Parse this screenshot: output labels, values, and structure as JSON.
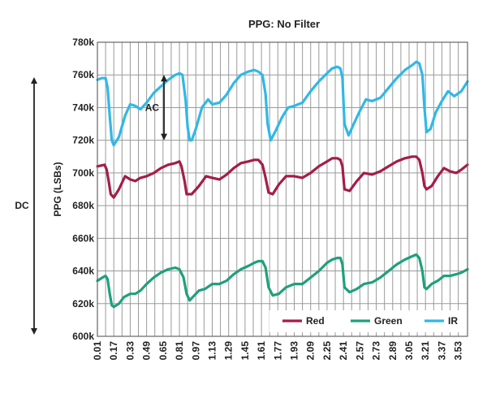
{
  "chart_data": {
    "type": "line",
    "title": "PPG: No Filter",
    "ylabel": "PPG (LSBs)",
    "xlabel": "",
    "ylim": [
      600000,
      780000
    ],
    "xlim": [
      0.01,
      3.62
    ],
    "y_ticks": [
      600000,
      620000,
      640000,
      660000,
      680000,
      700000,
      720000,
      740000,
      760000,
      780000
    ],
    "y_tick_labels": [
      "600k",
      "620k",
      "640k",
      "660k",
      "680k",
      "700k",
      "720k",
      "740k",
      "760k",
      "780k"
    ],
    "x_ticks": [
      "0.01",
      "0.17",
      "0.33",
      "0.49",
      "0.65",
      "0.81",
      "0.97",
      "1.13",
      "1.29",
      "1.45",
      "1.61",
      "1.77",
      "1.93",
      "2.09",
      "2.25",
      "2.41",
      "2.57",
      "2.73",
      "2.89",
      "3.05",
      "3.21",
      "3.37",
      "3.53"
    ],
    "grid": true,
    "legend_position": "bottom-right",
    "series": [
      {
        "name": "Red",
        "color": "#a31d4a",
        "x": [
          0.01,
          0.08,
          0.1,
          0.12,
          0.14,
          0.17,
          0.22,
          0.28,
          0.33,
          0.38,
          0.43,
          0.49,
          0.56,
          0.63,
          0.7,
          0.77,
          0.81,
          0.83,
          0.86,
          0.88,
          0.93,
          1.0,
          1.07,
          1.13,
          1.2,
          1.27,
          1.34,
          1.41,
          1.48,
          1.54,
          1.58,
          1.62,
          1.65,
          1.68,
          1.72,
          1.78,
          1.85,
          1.93,
          2.01,
          2.09,
          2.17,
          2.25,
          2.3,
          2.35,
          2.38,
          2.4,
          2.42,
          2.47,
          2.54,
          2.61,
          2.69,
          2.77,
          2.85,
          2.93,
          3.01,
          3.08,
          3.12,
          3.15,
          3.18,
          3.2,
          3.22,
          3.27,
          3.33,
          3.39,
          3.45,
          3.51,
          3.56,
          3.62
        ],
        "y": [
          704000,
          705000,
          702000,
          695000,
          687000,
          685000,
          690000,
          698000,
          696000,
          695000,
          697000,
          698000,
          700000,
          703000,
          705000,
          706000,
          707000,
          704000,
          695000,
          687000,
          687000,
          692000,
          698000,
          697000,
          696000,
          699000,
          703000,
          706000,
          707000,
          708000,
          708000,
          705000,
          697000,
          688000,
          687000,
          693000,
          698000,
          698000,
          697000,
          700000,
          704000,
          707000,
          709000,
          709000,
          708000,
          704000,
          690000,
          689000,
          695000,
          700000,
          699000,
          701000,
          704000,
          707000,
          709000,
          710000,
          710000,
          708000,
          700000,
          692000,
          690000,
          692000,
          698000,
          703000,
          701000,
          700000,
          702000,
          705000
        ]
      },
      {
        "name": "Green",
        "color": "#1fa07c",
        "x": [
          0.01,
          0.06,
          0.09,
          0.11,
          0.13,
          0.15,
          0.17,
          0.22,
          0.27,
          0.33,
          0.38,
          0.43,
          0.49,
          0.56,
          0.63,
          0.7,
          0.77,
          0.81,
          0.85,
          0.88,
          0.91,
          0.94,
          1.0,
          1.06,
          1.13,
          1.2,
          1.27,
          1.34,
          1.41,
          1.48,
          1.54,
          1.58,
          1.62,
          1.65,
          1.68,
          1.72,
          1.78,
          1.85,
          1.93,
          2.01,
          2.09,
          2.17,
          2.25,
          2.3,
          2.35,
          2.38,
          2.4,
          2.42,
          2.47,
          2.54,
          2.61,
          2.69,
          2.77,
          2.85,
          2.93,
          3.01,
          3.08,
          3.12,
          3.15,
          3.18,
          3.2,
          3.22,
          3.27,
          3.33,
          3.39,
          3.45,
          3.51,
          3.56,
          3.62
        ],
        "y": [
          634000,
          636000,
          637000,
          635000,
          626000,
          619000,
          618000,
          620000,
          624000,
          626000,
          626000,
          628000,
          632000,
          636000,
          639000,
          641000,
          642000,
          641000,
          636000,
          626000,
          622000,
          624000,
          628000,
          629000,
          632000,
          632000,
          634000,
          638000,
          641000,
          643000,
          645000,
          646000,
          646000,
          642000,
          630000,
          625000,
          626000,
          630000,
          632000,
          632000,
          636000,
          640000,
          645000,
          647000,
          648000,
          648000,
          644000,
          630000,
          627000,
          629000,
          632000,
          633000,
          636000,
          640000,
          644000,
          647000,
          649000,
          650000,
          648000,
          640000,
          630000,
          629000,
          632000,
          634000,
          637000,
          637000,
          638000,
          639000,
          641000
        ]
      },
      {
        "name": "IR",
        "color": "#30b8e6",
        "x": [
          0.01,
          0.05,
          0.09,
          0.11,
          0.13,
          0.15,
          0.17,
          0.22,
          0.28,
          0.33,
          0.38,
          0.43,
          0.49,
          0.56,
          0.63,
          0.7,
          0.77,
          0.81,
          0.84,
          0.87,
          0.89,
          0.91,
          0.93,
          0.97,
          1.03,
          1.09,
          1.13,
          1.2,
          1.27,
          1.34,
          1.41,
          1.48,
          1.54,
          1.58,
          1.62,
          1.65,
          1.67,
          1.7,
          1.75,
          1.81,
          1.87,
          1.93,
          2.01,
          2.09,
          2.17,
          2.25,
          2.3,
          2.35,
          2.38,
          2.4,
          2.42,
          2.46,
          2.51,
          2.57,
          2.63,
          2.69,
          2.77,
          2.85,
          2.93,
          3.01,
          3.08,
          3.12,
          3.15,
          3.18,
          3.2,
          3.22,
          3.26,
          3.31,
          3.37,
          3.43,
          3.49,
          3.56,
          3.62
        ],
        "y": [
          757000,
          758000,
          758000,
          752000,
          735000,
          720000,
          717000,
          722000,
          735000,
          742000,
          741000,
          739000,
          743000,
          749000,
          753000,
          757000,
          760000,
          761000,
          760000,
          745000,
          728000,
          720000,
          720000,
          727000,
          740000,
          745000,
          742000,
          743000,
          748000,
          755000,
          760000,
          762000,
          763000,
          762000,
          760000,
          748000,
          730000,
          720000,
          726000,
          734000,
          740000,
          741000,
          743000,
          750000,
          756000,
          761000,
          764000,
          765000,
          764000,
          758000,
          730000,
          723000,
          730000,
          738000,
          745000,
          744000,
          746000,
          752000,
          758000,
          763000,
          766000,
          768000,
          767000,
          760000,
          740000,
          725000,
          727000,
          737000,
          744000,
          750000,
          747000,
          750000,
          756000
        ]
      }
    ],
    "annotations": [
      {
        "text": "AC",
        "x": 0.81,
        "y_from": 720000,
        "y_to": 760000
      },
      {
        "text": "DC",
        "span": "full y-axis"
      }
    ]
  }
}
